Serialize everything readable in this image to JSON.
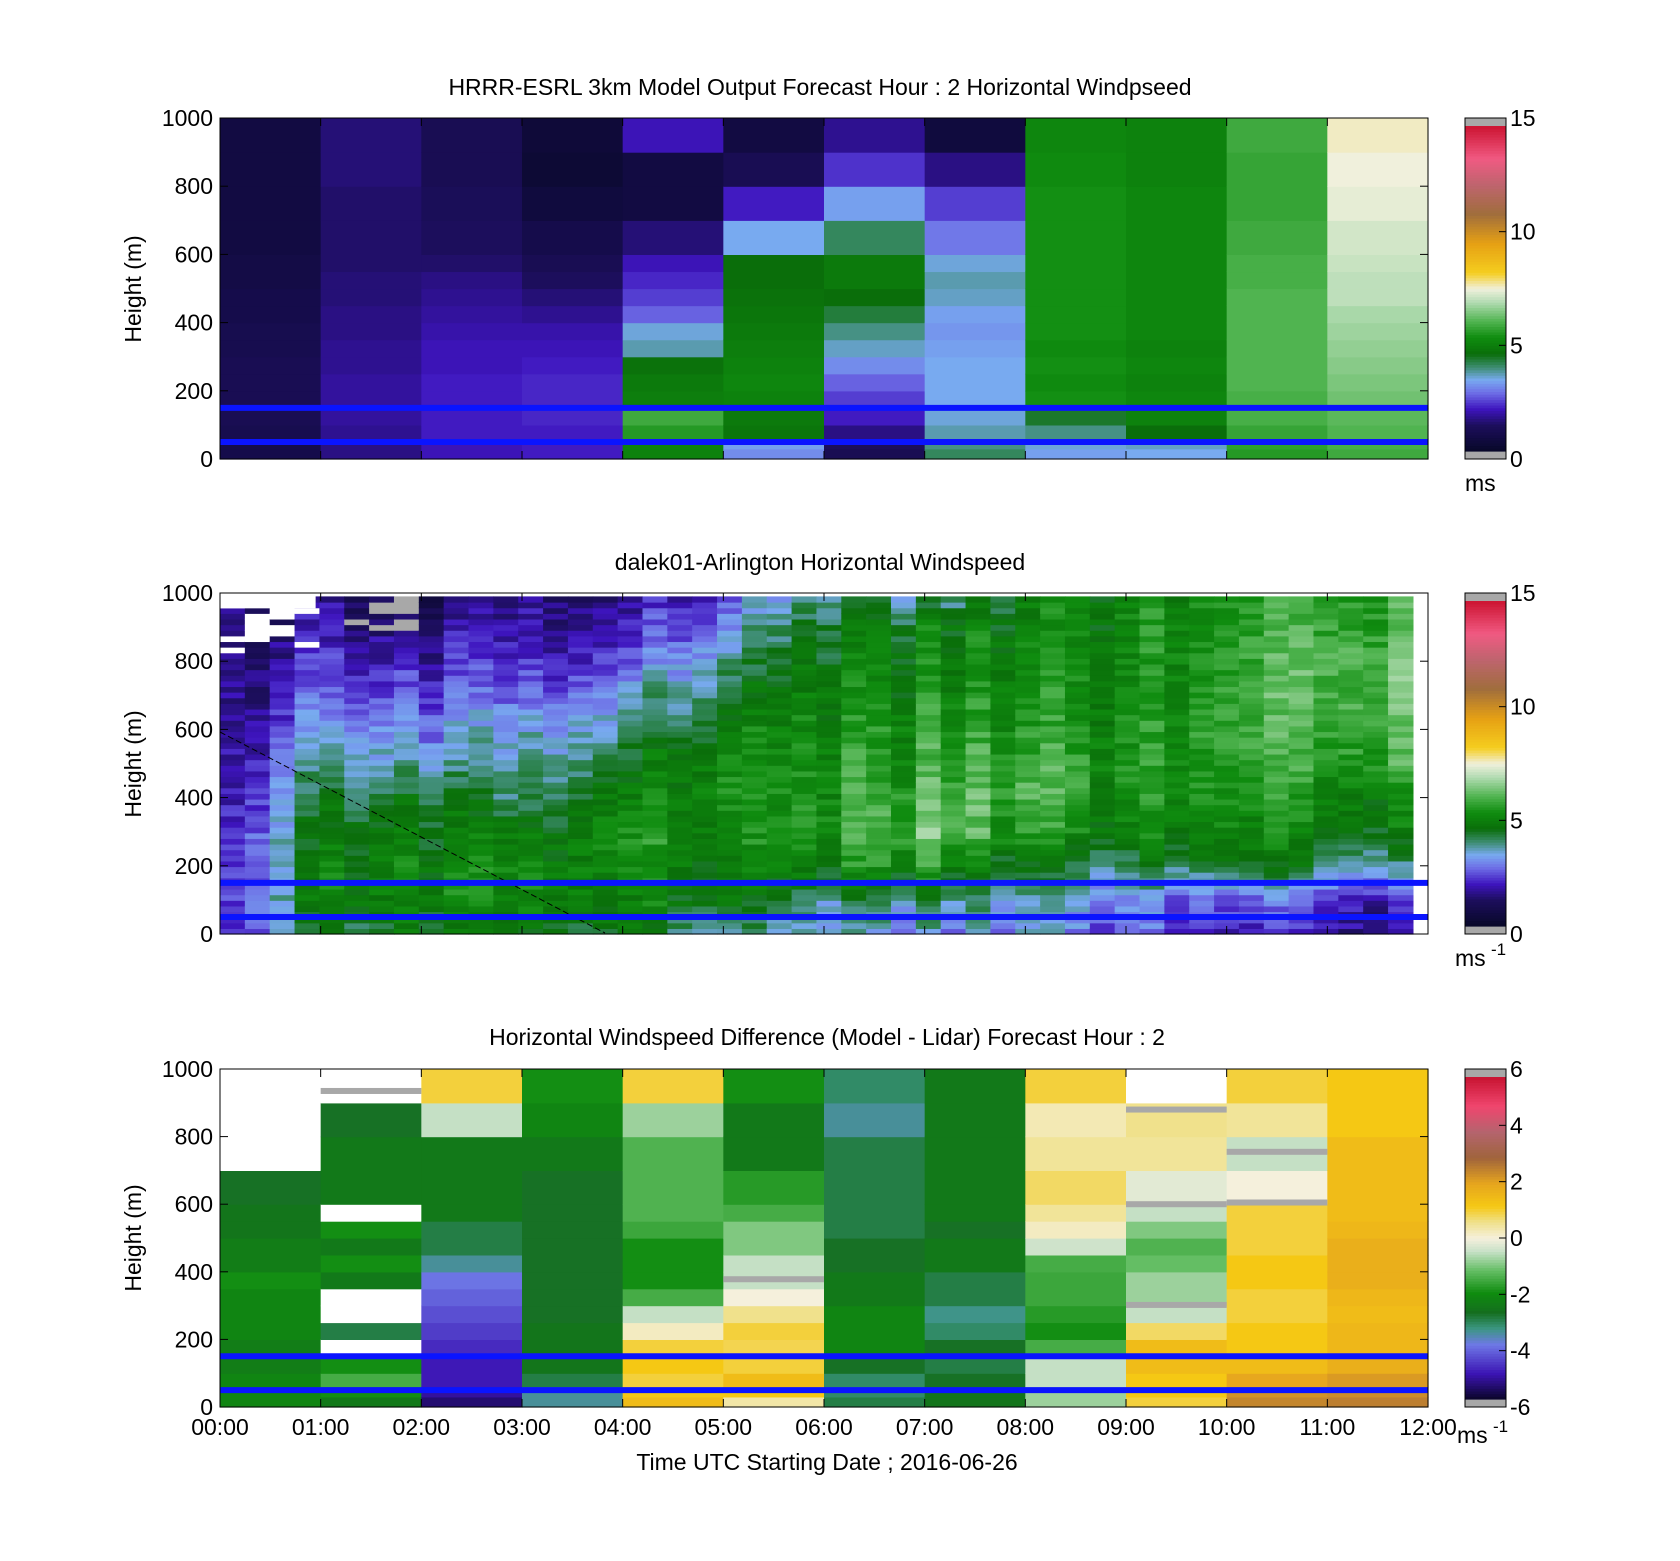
{
  "chart_data": [
    {
      "type": "heatmap",
      "title": "HRRR-ESRL 3km Model Output   Forecast Hour : 2 Horizontal Windpseed",
      "ylabel": "Height (m)",
      "xlabel": "",
      "ylim": [
        0,
        1000
      ],
      "yticks": [
        "0",
        "200",
        "400",
        "600",
        "800",
        "1000"
      ],
      "x_hours": [
        0,
        12
      ],
      "x_ticks_shown": false,
      "colorbar": {
        "range": [
          0,
          15
        ],
        "ticks": [
          "0",
          "5",
          "10",
          "15"
        ],
        "unit": "ms",
        "unit_sup": ""
      },
      "height_levels_m": [
        0,
        30,
        60,
        100,
        150,
        200,
        250,
        300,
        350,
        400,
        450,
        500,
        550,
        600,
        700,
        800,
        900,
        1000
      ],
      "columns": [
        [
          0.8,
          0.8,
          0.9,
          1.0,
          1.0,
          1.0,
          1.0,
          0.9,
          0.9,
          0.8,
          0.8,
          0.7,
          0.7,
          0.6,
          0.6,
          0.6,
          0.6
        ],
        [
          1.5,
          1.5,
          1.6,
          1.7,
          1.7,
          1.7,
          1.6,
          1.6,
          1.5,
          1.5,
          1.4,
          1.4,
          1.3,
          1.3,
          1.3,
          1.4,
          1.4
        ],
        [
          1.9,
          1.9,
          2.0,
          2.0,
          2.0,
          2.0,
          1.9,
          1.9,
          1.8,
          1.7,
          1.6,
          1.5,
          1.3,
          1.2,
          1.1,
          1.0,
          1.0
        ],
        [
          2.0,
          2.0,
          2.0,
          2.1,
          2.1,
          2.1,
          2.0,
          1.9,
          1.8,
          1.6,
          1.4,
          1.2,
          1.0,
          0.8,
          0.5,
          0.3,
          0.4
        ],
        [
          5.0,
          5.0,
          5.5,
          5.8,
          4.9,
          4.8,
          4.6,
          3.6,
          3.4,
          2.6,
          2.3,
          2.1,
          1.9,
          1.4,
          0.6,
          0.6,
          1.9
        ],
        [
          3.0,
          3.2,
          4.7,
          4.8,
          5.0,
          5.1,
          5.0,
          4.9,
          4.8,
          4.7,
          4.6,
          4.5,
          4.5,
          3.3,
          2.0,
          1.0,
          0.6
        ],
        [
          1.0,
          1.2,
          1.5,
          2.0,
          2.3,
          2.6,
          3.0,
          3.5,
          3.8,
          4.2,
          4.5,
          4.8,
          4.8,
          4.0,
          3.2,
          2.2,
          1.6
        ],
        [
          4.0,
          3.8,
          3.6,
          3.4,
          3.3,
          3.3,
          3.3,
          3.2,
          3.1,
          3.2,
          3.5,
          3.6,
          3.4,
          2.8,
          2.3,
          1.5,
          0.5
        ],
        [
          3.2,
          3.4,
          3.8,
          4.3,
          5.3,
          5.2,
          5.3,
          5.2,
          5.3,
          5.3,
          5.3,
          5.3,
          5.3,
          5.3,
          5.3,
          5.2,
          5.1
        ],
        [
          3.3,
          3.5,
          4.5,
          5.0,
          5.1,
          5.0,
          5.1,
          5.0,
          5.1,
          5.1,
          5.1,
          5.1,
          5.1,
          5.1,
          5.1,
          5.0,
          5.0
        ],
        [
          5.5,
          5.6,
          5.7,
          5.9,
          5.9,
          6.0,
          6.0,
          6.0,
          6.0,
          6.0,
          6.0,
          5.9,
          5.9,
          5.8,
          5.7,
          5.7,
          5.8
        ],
        [
          5.8,
          5.9,
          6.0,
          6.1,
          6.3,
          6.4,
          6.5,
          6.6,
          6.7,
          6.8,
          7.0,
          7.0,
          7.1,
          7.2,
          7.4,
          7.5,
          7.6
        ]
      ]
    },
    {
      "type": "heatmap",
      "title": "dalek01-Arlington  Horizontal Windspeed",
      "ylabel": "Height (m)",
      "xlabel": "",
      "ylim": [
        0,
        1000
      ],
      "yticks": [
        "0",
        "200",
        "400",
        "600",
        "800",
        "1000"
      ],
      "x_hours": [
        0,
        12
      ],
      "x_ticks_shown": false,
      "colorbar": {
        "range": [
          0,
          15
        ],
        "ticks": [
          "0",
          "5",
          "10",
          "15"
        ],
        "unit": "ms",
        "unit_sup": "-1"
      },
      "time_span_hours": [
        0,
        11.85
      ],
      "time_anchors_h": [
        0,
        1,
        2,
        3,
        4,
        5,
        6,
        7,
        8,
        9,
        10,
        11,
        11.85
      ],
      "height_anchors_m": [
        0,
        100,
        200,
        300,
        400,
        500,
        600,
        700,
        800,
        900,
        1000
      ],
      "speed_anchors": [
        [
          2.0,
          2.0,
          2.0,
          2.0,
          1.5,
          1.5,
          1.5,
          1.5,
          1.5,
          1.5,
          1.5
        ],
        [
          4.0,
          4.8,
          4.8,
          4.5,
          4.2,
          3.8,
          3.0,
          2.5,
          2.0,
          1.5,
          1.5
        ],
        [
          4.6,
          5.0,
          5.0,
          4.8,
          4.4,
          3.5,
          3.0,
          2.5,
          2.0,
          1.5,
          1.0
        ],
        [
          4.4,
          5.0,
          5.0,
          4.6,
          3.8,
          3.5,
          3.2,
          2.6,
          2.0,
          1.8,
          1.5
        ],
        [
          4.6,
          5.0,
          5.2,
          5.4,
          5.0,
          4.5,
          3.8,
          3.2,
          2.5,
          2.0,
          1.5
        ],
        [
          3.8,
          4.8,
          5.0,
          5.2,
          5.4,
          5.3,
          5.0,
          4.5,
          3.8,
          3.2,
          2.5
        ],
        [
          3.5,
          3.8,
          5.0,
          5.5,
          5.4,
          5.3,
          5.2,
          5.0,
          4.8,
          4.5,
          4.0
        ],
        [
          3.0,
          4.0,
          5.5,
          6.2,
          6.0,
          5.6,
          5.4,
          5.2,
          5.0,
          4.8,
          3.5
        ],
        [
          3.2,
          3.5,
          4.5,
          5.5,
          6.0,
          5.8,
          5.5,
          5.3,
          5.2,
          5.0,
          4.8
        ],
        [
          2.5,
          3.0,
          4.0,
          4.8,
          5.2,
          5.3,
          5.2,
          5.1,
          5.0,
          5.0,
          5.0
        ],
        [
          2.0,
          2.6,
          4.5,
          5.0,
          5.4,
          5.6,
          5.7,
          5.7,
          5.6,
          5.5,
          5.3
        ],
        [
          2.0,
          2.4,
          4.2,
          4.8,
          5.2,
          5.8,
          6.0,
          6.2,
          6.2,
          6.0,
          5.8
        ],
        [
          1.5,
          2.2,
          3.5,
          4.8,
          5.0,
          5.8,
          6.0,
          6.2,
          6.2,
          6.0,
          5.8
        ]
      ],
      "missing_data_note": ""
    },
    {
      "type": "heatmap",
      "title": "Horizontal Windspeed Difference (Model - Lidar) Forecast Hour : 2",
      "ylabel": "Height (m)",
      "xlabel": "Time UTC  Starting Date ; 2016-06-26",
      "ylim": [
        0,
        1000
      ],
      "yticks": [
        "0",
        "200",
        "400",
        "600",
        "800",
        "1000"
      ],
      "xticks": [
        "00:00",
        "01:00",
        "02:00",
        "03:00",
        "04:00",
        "05:00",
        "06:00",
        "07:00",
        "08:00",
        "09:00",
        "10:00",
        "11:00",
        "12:00"
      ],
      "x_hours": [
        0,
        12
      ],
      "colorbar": {
        "range": [
          -6,
          6
        ],
        "ticks": [
          "-6",
          "-4",
          "-2",
          "0",
          "2",
          "4",
          "6"
        ],
        "unit": "ms",
        "unit_sup": "-1"
      },
      "height_levels_m": [
        0,
        30,
        60,
        100,
        150,
        200,
        250,
        300,
        350,
        400,
        450,
        500,
        550,
        600,
        700,
        800,
        900,
        1000
      ],
      "columns": [
        [
          -2.2,
          -2.2,
          -2.2,
          -2.4,
          -2.4,
          -2.2,
          -2.2,
          -2.2,
          -2.0,
          -2.4,
          -2.4,
          -2.6,
          -2.6,
          -2.8,
          null,
          null,
          null
        ],
        [
          -2.5,
          -2.0,
          -1.5,
          -2.0,
          null,
          -3.0,
          null,
          null,
          -2.5,
          -2.0,
          -2.5,
          -2.0,
          null,
          -2.5,
          -2.5,
          -2.8,
          null
        ],
        [
          -5.5,
          -5.2,
          -5.0,
          -5.0,
          -4.8,
          -4.6,
          -4.4,
          -4.2,
          -4.0,
          -3.5,
          -3.0,
          -3.0,
          -2.5,
          -2.5,
          -2.5,
          -0.5,
          1.0
        ],
        [
          -3.5,
          -3.5,
          -3.0,
          -2.6,
          -2.6,
          -2.6,
          -2.8,
          -2.8,
          -2.8,
          -2.8,
          -2.8,
          -2.8,
          -2.8,
          -2.8,
          -2.5,
          -2.2,
          -2.0
        ],
        [
          1.5,
          1.2,
          1.0,
          1.2,
          1.0,
          0.2,
          -0.5,
          -1.5,
          -2.0,
          -2.0,
          -2.0,
          -1.6,
          -1.4,
          -1.4,
          -1.4,
          -0.8,
          1.0
        ],
        [
          0.4,
          1.2,
          1.5,
          1.0,
          0.9,
          1.0,
          0.6,
          0.0,
          -0.5,
          -0.5,
          -1.0,
          -1.0,
          -1.5,
          -1.8,
          -2.5,
          -2.5,
          -2.0
        ],
        [
          -3.0,
          -3.2,
          -3.2,
          -2.8,
          -2.2,
          -2.2,
          -2.2,
          -2.5,
          -2.5,
          -2.8,
          -2.8,
          -3.0,
          -3.0,
          -3.0,
          -3.0,
          -3.5,
          -3.2
        ],
        [
          -2.6,
          -2.6,
          -2.8,
          -3.0,
          -2.8,
          -3.2,
          -3.4,
          -3.0,
          -3.0,
          -2.5,
          -2.5,
          -2.8,
          -2.5,
          -2.5,
          -2.5,
          -2.5,
          -2.5
        ],
        [
          -0.8,
          -0.8,
          -0.5,
          -0.5,
          -1.5,
          -2.0,
          -1.8,
          -1.6,
          -1.6,
          -1.5,
          -0.4,
          0.2,
          0.5,
          0.8,
          0.5,
          0.3,
          1.0
        ],
        [
          1.0,
          1.2,
          1.2,
          1.5,
          1.5,
          0.8,
          -0.5,
          -0.8,
          -0.8,
          -1.2,
          -1.4,
          -1.0,
          -0.5,
          -0.2,
          0.5,
          0.6,
          null
        ],
        [
          2.5,
          2.3,
          2.0,
          1.5,
          1.2,
          1.2,
          1.0,
          1.0,
          1.2,
          1.2,
          1.0,
          1.0,
          1.0,
          0.0,
          -0.5,
          0.5,
          1.0
        ],
        [
          2.6,
          2.4,
          2.2,
          1.8,
          1.6,
          1.6,
          1.5,
          1.6,
          1.8,
          1.8,
          1.8,
          1.6,
          1.5,
          1.5,
          1.5,
          1.2,
          1.2
        ]
      ]
    }
  ],
  "reference_lines_m": [
    50,
    150
  ],
  "colors": {
    "reference_line": "#0a14ff",
    "missing": "#a8a8a8",
    "frame": "#000000"
  }
}
